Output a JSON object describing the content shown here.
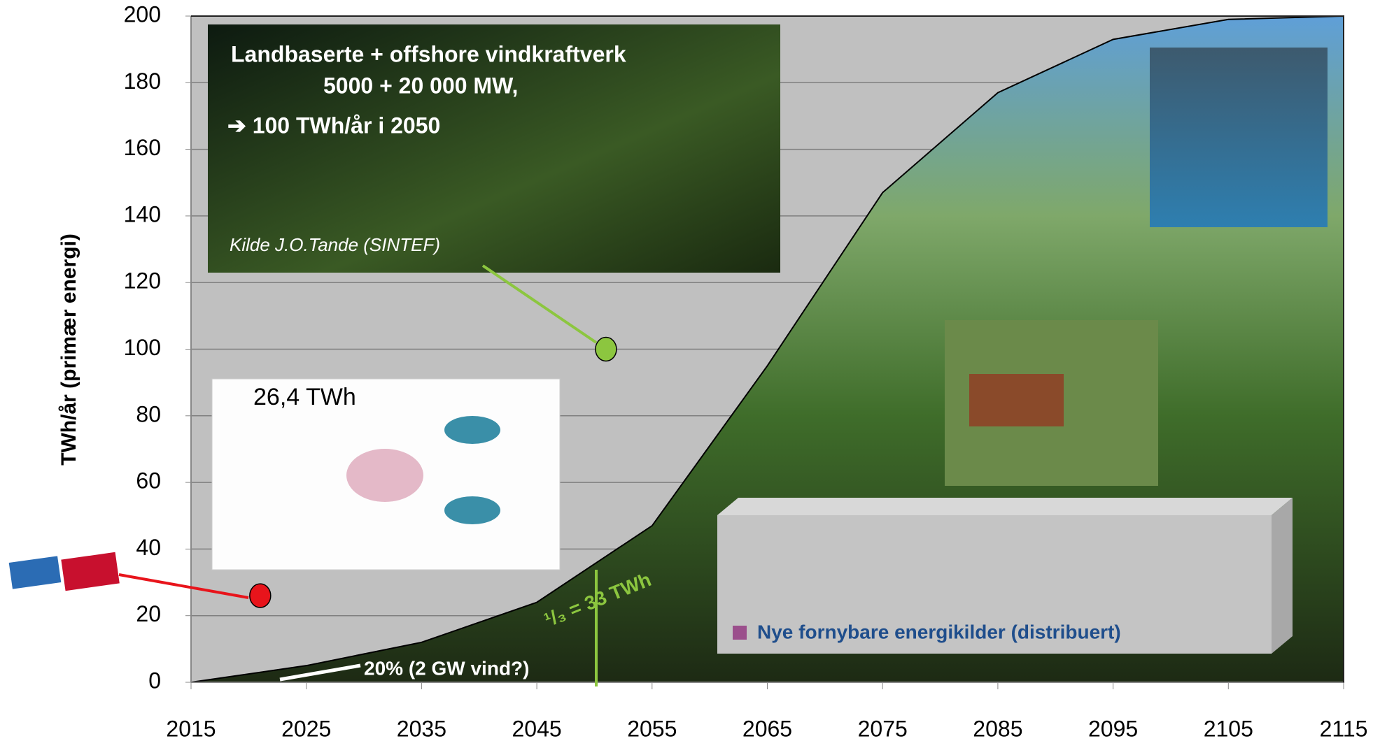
{
  "chart_data": {
    "type": "area",
    "ylabel": "TWh/år (primær energi)",
    "x": [
      2015,
      2025,
      2035,
      2045,
      2055,
      2065,
      2075,
      2085,
      2095,
      2105,
      2115
    ],
    "series": [
      {
        "name": "Nye fornybare energikilder (distribuert)",
        "color": "#9b4f8c",
        "values": [
          0,
          5,
          12,
          24,
          47,
          95,
          147,
          177,
          193,
          199,
          200
        ]
      }
    ],
    "xlim": [
      2015,
      2115
    ],
    "xticks": [
      2015,
      2025,
      2035,
      2045,
      2055,
      2065,
      2075,
      2085,
      2095,
      2105,
      2115
    ],
    "ylim": [
      0,
      200
    ],
    "yticks": [
      0,
      20,
      40,
      60,
      80,
      100,
      120,
      140,
      160,
      180,
      200
    ],
    "grid": true,
    "markers": [
      {
        "x": 2021,
        "y": 26,
        "color": "#e8141b"
      },
      {
        "x": 2051,
        "y": 100,
        "color": "#8cc63f"
      }
    ],
    "annotations": [
      "Landbaserte + offshore vindkraftverk",
      "5000 + 20 000 MW,",
      "➔ 100 TWh/år i 2050",
      "Kilde J.O.Tande (SINTEF)",
      "26,4 TWh",
      "20% (2 GW vind?)",
      "¹/₃ = 33 TWh"
    ]
  }
}
